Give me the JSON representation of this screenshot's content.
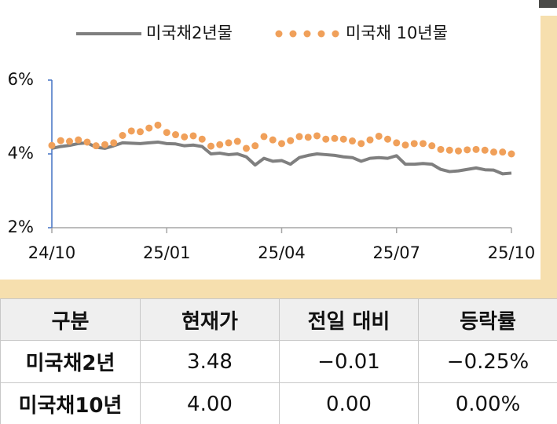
{
  "chart_data": {
    "type": "line",
    "categories": [
      "24/10",
      null,
      null,
      null,
      null,
      null,
      null,
      null,
      null,
      null,
      null,
      null,
      null,
      "25/01",
      null,
      null,
      null,
      null,
      null,
      null,
      null,
      null,
      null,
      null,
      null,
      null,
      "25/04",
      null,
      null,
      null,
      null,
      null,
      null,
      null,
      null,
      null,
      null,
      null,
      null,
      "25/07",
      null,
      null,
      null,
      null,
      null,
      null,
      null,
      null,
      null,
      null,
      null,
      null,
      "25/10"
    ],
    "series": [
      {
        "name": "미국채2년물",
        "color": "#7f7f7f",
        "style": "line",
        "values": [
          4.15,
          4.2,
          4.23,
          4.28,
          4.3,
          4.18,
          4.15,
          4.22,
          4.3,
          4.29,
          4.28,
          4.3,
          4.32,
          4.28,
          4.27,
          4.22,
          4.24,
          4.2,
          4.0,
          4.02,
          3.98,
          4.0,
          3.92,
          3.7,
          3.88,
          3.8,
          3.82,
          3.72,
          3.9,
          3.96,
          4.0,
          3.98,
          3.96,
          3.92,
          3.9,
          3.8,
          3.88,
          3.9,
          3.88,
          3.95,
          3.72,
          3.72,
          3.74,
          3.72,
          3.58,
          3.52,
          3.54,
          3.58,
          3.62,
          3.57,
          3.56,
          3.46,
          3.48
        ]
      },
      {
        "name": "미국채 10년물",
        "color": "#f0a05a",
        "style": "dots",
        "values": [
          4.23,
          4.36,
          4.34,
          4.38,
          4.32,
          4.22,
          4.25,
          4.3,
          4.5,
          4.62,
          4.6,
          4.7,
          4.78,
          4.58,
          4.52,
          4.46,
          4.49,
          4.4,
          4.21,
          4.25,
          4.3,
          4.34,
          4.15,
          4.22,
          4.47,
          4.38,
          4.28,
          4.36,
          4.47,
          4.45,
          4.49,
          4.4,
          4.42,
          4.4,
          4.35,
          4.28,
          4.38,
          4.48,
          4.4,
          4.3,
          4.24,
          4.28,
          4.28,
          4.22,
          4.12,
          4.1,
          4.08,
          4.11,
          4.12,
          4.1,
          4.05,
          4.05,
          4.0
        ]
      }
    ],
    "ylim": [
      2,
      6
    ],
    "yticks": [
      {
        "value": 2,
        "label": "2%"
      },
      {
        "value": 4,
        "label": "4%"
      },
      {
        "value": 6,
        "label": "6%"
      }
    ],
    "grid": false
  },
  "table": {
    "header": [
      "구분",
      "현재가",
      "전일 대비",
      "등락률"
    ],
    "rows": [
      [
        "미국채2년",
        "3.48",
        "−0.01",
        "−0.25%"
      ],
      [
        "미국채10년",
        "4.00",
        "0.00",
        "0.00%"
      ]
    ]
  }
}
